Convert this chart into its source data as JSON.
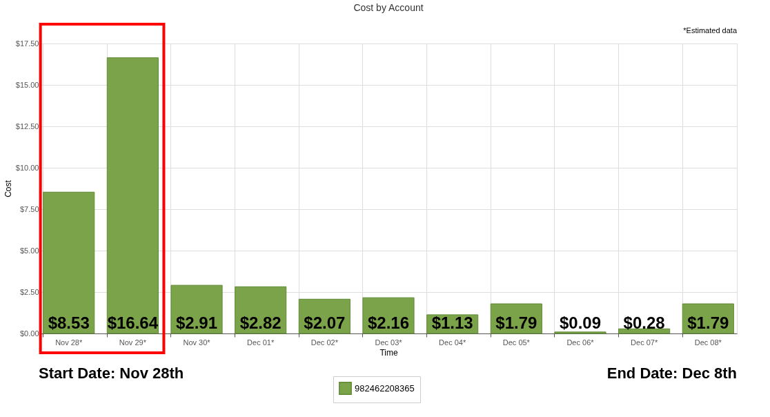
{
  "chart_data": {
    "type": "bar",
    "title": "Cost by Account",
    "xlabel": "Time",
    "ylabel": "Cost",
    "categories": [
      "Nov 28*",
      "Nov 29*",
      "Nov 30*",
      "Dec 01*",
      "Dec 02*",
      "Dec 03*",
      "Dec 04*",
      "Dec 05*",
      "Dec 06*",
      "Dec 07*",
      "Dec 08*"
    ],
    "series": [
      {
        "name": "982462208365",
        "color": "#7ba34a",
        "values": [
          8.53,
          16.64,
          2.91,
          2.82,
          2.07,
          2.16,
          1.13,
          1.79,
          0.09,
          0.28,
          1.79
        ],
        "value_labels": [
          "$8.53",
          "$16.64",
          "$2.91",
          "$2.82",
          "$2.07",
          "$2.16",
          "$1.13",
          "$1.79",
          "$0.09",
          "$0.28",
          "$1.79"
        ]
      }
    ],
    "ylim": [
      0,
      17.5
    ],
    "yticks": [
      {
        "value": 0,
        "label": "$0.00"
      },
      {
        "value": 2.5,
        "label": "$2.50"
      },
      {
        "value": 5,
        "label": "$5.00"
      },
      {
        "value": 7.5,
        "label": "$7.50"
      },
      {
        "value": 10,
        "label": "$10.00"
      },
      {
        "value": 12.5,
        "label": "$12.50"
      },
      {
        "value": 15,
        "label": "$15.00"
      },
      {
        "value": 17.5,
        "label": "$17.50"
      }
    ],
    "grid": true,
    "legend": "bottom",
    "annotations": [
      "*Estimated data",
      "Start Date: Nov 28th",
      "End Date: Dec 8th"
    ]
  }
}
